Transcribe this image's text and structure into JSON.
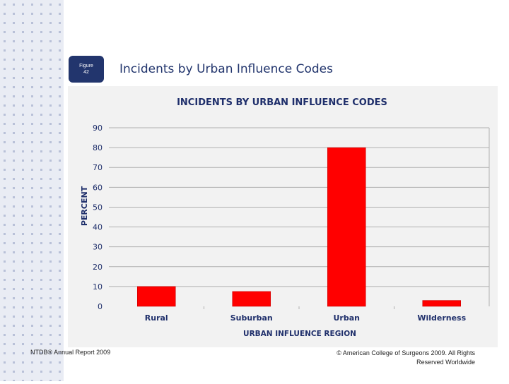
{
  "slide": {
    "figure_label": "Figure",
    "figure_number": "42",
    "title": "Incidents by Urban Influence Codes",
    "footer_left": "NTDB® Annual Report 2009",
    "footer_right": "© American College of Surgeons 2009. All Rights Reserved Worldwide"
  },
  "colors": {
    "bar": "#ff0000",
    "title": "#22356d",
    "badge": "#22356d",
    "chart_text": "#1f2f6b",
    "grid": "#b0b0b0"
  },
  "chart_data": {
    "type": "bar",
    "title": "INCIDENTS BY URBAN INFLUENCE CODES",
    "xlabel": "URBAN INFLUENCE REGION",
    "ylabel": "PERCENT",
    "categories": [
      "Rural",
      "Suburban",
      "Urban",
      "Wilderness"
    ],
    "values": [
      10,
      7.5,
      80,
      3
    ],
    "ylim": [
      0,
      90
    ],
    "yticks": [
      0,
      10,
      20,
      30,
      40,
      50,
      60,
      70,
      80,
      90
    ],
    "grid": true
  }
}
